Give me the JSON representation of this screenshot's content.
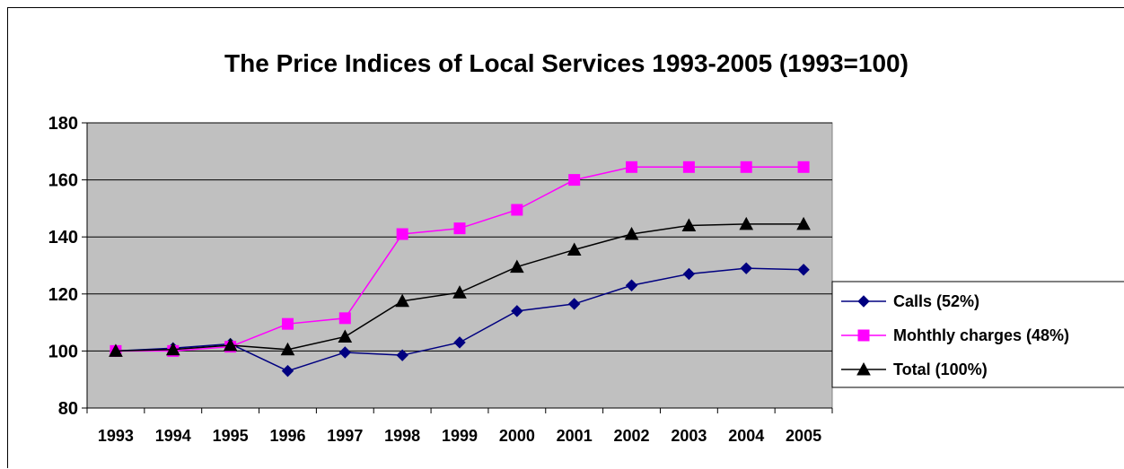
{
  "chart_data": {
    "type": "line",
    "title": "The Price Indices of Local Services 1993-2005  (1993=100)",
    "xlabel": "",
    "ylabel": "",
    "categories": [
      "1993",
      "1994",
      "1995",
      "1996",
      "1997",
      "1998",
      "1999",
      "2000",
      "2001",
      "2002",
      "2003",
      "2004",
      "2005"
    ],
    "ylim": [
      80,
      180
    ],
    "yticks": [
      80,
      100,
      120,
      140,
      160,
      180
    ],
    "grid": true,
    "legend_position": "right",
    "plot_background": "#c0c0c0",
    "series": [
      {
        "name": "Calls (52%)",
        "color": "#000080",
        "marker": "diamond",
        "values": [
          100,
          101,
          102.5,
          93,
          99.5,
          98.5,
          103,
          114,
          116.5,
          123,
          127,
          129,
          128.5
        ]
      },
      {
        "name": "Mohthly charges (48%)",
        "color": "#ff00ff",
        "marker": "square",
        "values": [
          100,
          100,
          101.5,
          109.5,
          111.5,
          141,
          143,
          149.5,
          160,
          164.5,
          164.5,
          164.5,
          164.5
        ]
      },
      {
        "name": "Total (100%)",
        "color": "#000000",
        "marker": "triangle",
        "values": [
          100,
          100.5,
          102,
          100.5,
          105,
          117.5,
          120.5,
          129.5,
          135.5,
          141,
          144,
          144.5,
          144.5
        ]
      }
    ]
  }
}
